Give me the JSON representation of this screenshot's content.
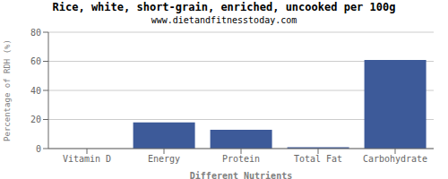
{
  "chart_data": {
    "type": "bar",
    "title": "Rice, white, short-grain, enriched, uncooked per 100g",
    "subtitle": "www.dietandfitnesstoday.com",
    "xlabel": "Different Nutrients",
    "ylabel": "Percentage of RDH (%)",
    "categories": [
      "Vitamin D",
      "Energy",
      "Protein",
      "Total Fat",
      "Carbohydrate"
    ],
    "values": [
      0.0,
      18.0,
      13.0,
      1.0,
      61.0
    ],
    "color": "#3d5a99",
    "ylim": [
      0,
      80
    ],
    "yticks": [
      0,
      20,
      40,
      60,
      80
    ],
    "grid": true
  }
}
